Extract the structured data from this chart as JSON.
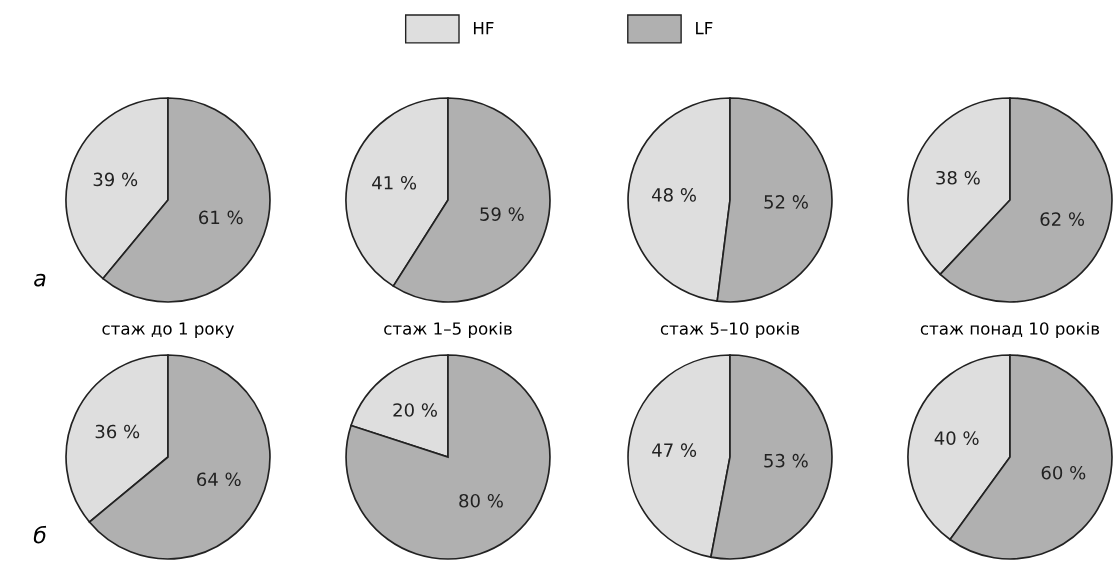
{
  "chart_data": [
    {
      "type": "pie",
      "categories": [
        "HF",
        "LF"
      ],
      "values": [
        39,
        61
      ],
      "colors": [
        "#dedede",
        "#b0b0b0"
      ],
      "value_labels": [
        "39 %",
        "61 %"
      ],
      "xlabel": "стаж до 1 року",
      "annotations": [
        "а"
      ],
      "legend": "top"
    },
    {
      "type": "pie",
      "categories": [
        null,
        null
      ],
      "values": [
        41,
        59
      ],
      "colors": [
        "#dedede",
        "#b0b0b0"
      ],
      "value_labels": [
        "41 %",
        "59 %"
      ],
      "xlabel": "стаж 1–5 років"
    },
    {
      "type": "pie",
      "categories": [
        null,
        null
      ],
      "values": [
        48,
        52
      ],
      "colors": [
        "#dedede",
        "#b0b0b0"
      ],
      "value_labels": [
        "48 %",
        "52 %"
      ],
      "xlabel": "стаж 5–10 років"
    },
    {
      "type": "pie",
      "categories": [
        null,
        null
      ],
      "values": [
        38,
        62
      ],
      "colors": [
        "#dedede",
        "#b0b0b0"
      ],
      "value_labels": [
        "38 %",
        "62 %"
      ],
      "xlabel": "стаж понад 10 років"
    },
    {
      "type": "pie",
      "categories": [
        null,
        null
      ],
      "values": [
        36,
        64
      ],
      "colors": [
        "#dedede",
        "#b0b0b0"
      ],
      "value_labels": [
        "36 %",
        "64 %"
      ],
      "annotations": [
        "б"
      ]
    },
    {
      "type": "pie",
      "categories": [
        null,
        null
      ],
      "values": [
        20,
        80
      ],
      "colors": [
        "#dedede",
        "#b0b0b0"
      ],
      "value_labels": [
        "20 %",
        "80 %"
      ]
    },
    {
      "type": "pie",
      "categories": [
        null,
        null
      ],
      "values": [
        47,
        53
      ],
      "colors": [
        "#dedede",
        "#b0b0b0"
      ],
      "value_labels": [
        "47 %",
        "53 %"
      ]
    },
    {
      "type": "pie",
      "categories": [
        null,
        null
      ],
      "values": [
        40,
        60
      ],
      "colors": [
        "#dedede",
        "#b0b0b0"
      ],
      "value_labels": [
        "40 %",
        "60 %"
      ]
    }
  ]
}
